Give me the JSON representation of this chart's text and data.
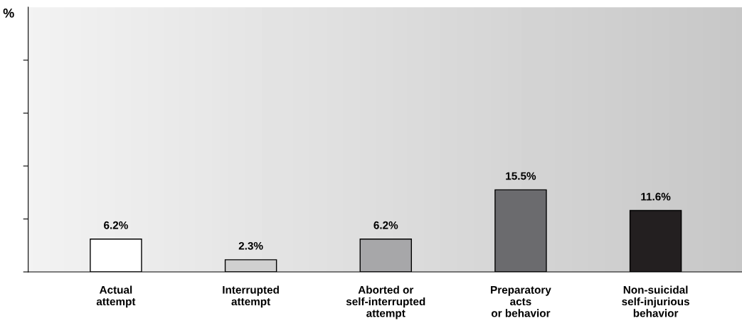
{
  "chart_data": {
    "type": "bar",
    "ylabel": "%",
    "categories": [
      "Actual\nattempt",
      "Interrupted\nattempt",
      "Aborted or\nself-interrupted\nattempt",
      "Preparatory\nacts\nor behavior",
      "Non-suicidal\nself-injurious\nbehavior"
    ],
    "values": [
      6.2,
      2.3,
      6.2,
      15.5,
      11.6
    ],
    "colors": [
      "#ffffff",
      "#d0d0d0",
      "#a7a7a9",
      "#6b6b6e",
      "#231f20"
    ],
    "value_labels": [
      "6.2%",
      "2.3%",
      "6.2%",
      "15.5%",
      "11.6%"
    ],
    "ylim": [
      0,
      50
    ],
    "yticks": [
      {
        "value": 0,
        "label": null
      },
      {
        "value": 10,
        "label": null
      },
      {
        "value": 20,
        "label": null
      },
      {
        "value": 30,
        "label": null
      },
      {
        "value": 40,
        "label": null
      }
    ],
    "grid": false,
    "legend": false
  }
}
